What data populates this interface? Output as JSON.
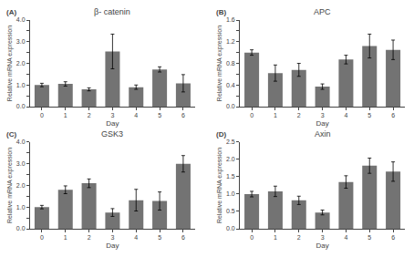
{
  "chart_data": [
    {
      "type": "bar",
      "title": "β- catenin",
      "annotations": [
        "(A)"
      ],
      "categories": [
        "0",
        "1",
        "2",
        "3",
        "4",
        "5",
        "6"
      ],
      "values": [
        1.0,
        1.05,
        0.8,
        2.55,
        0.9,
        1.72,
        1.08
      ],
      "errors": [
        0.08,
        0.1,
        0.07,
        0.8,
        0.1,
        0.12,
        0.4
      ],
      "color": "#737373",
      "xlabel": "Day",
      "ylabel": "Relative mRNA expression",
      "ylim": [
        0.0,
        4.0
      ],
      "yticks": [
        {
          "value": 0.0,
          "label": "0.0"
        },
        {
          "value": 0.5,
          "label": ""
        },
        {
          "value": 1.0,
          "label": "1.0"
        },
        {
          "value": 1.5,
          "label": ""
        },
        {
          "value": 2.0,
          "label": "2.0"
        },
        {
          "value": 2.5,
          "label": ""
        },
        {
          "value": 3.0,
          "label": "3.0"
        },
        {
          "value": 3.5,
          "label": ""
        },
        {
          "value": 4.0,
          "label": "4.0"
        }
      ],
      "grid": false
    },
    {
      "type": "bar",
      "title": "APC",
      "annotations": [
        "(B)"
      ],
      "categories": [
        "0",
        "1",
        "2",
        "3",
        "4",
        "5",
        "6"
      ],
      "values": [
        1.0,
        0.62,
        0.68,
        0.37,
        0.87,
        1.12,
        1.05
      ],
      "errors": [
        0.05,
        0.15,
        0.12,
        0.05,
        0.08,
        0.22,
        0.18
      ],
      "color": "#737373",
      "xlabel": "Day",
      "ylabel": "Relative mRNA expression",
      "ylim": [
        0.0,
        1.6
      ],
      "yticks": [
        {
          "value": 0.0,
          "label": "0.0"
        },
        {
          "value": 0.2,
          "label": ""
        },
        {
          "value": 0.4,
          "label": "0.4"
        },
        {
          "value": 0.6,
          "label": ""
        },
        {
          "value": 0.8,
          "label": "0.8"
        },
        {
          "value": 1.0,
          "label": ""
        },
        {
          "value": 1.2,
          "label": "1.2"
        },
        {
          "value": 1.4,
          "label": ""
        },
        {
          "value": 1.6,
          "label": "1.6"
        }
      ],
      "grid": false
    },
    {
      "type": "bar",
      "title": "GSK3",
      "annotations": [
        "(C)"
      ],
      "categories": [
        "0",
        "1",
        "2",
        "3",
        "4",
        "5",
        "6"
      ],
      "values": [
        1.0,
        1.8,
        2.1,
        0.75,
        1.32,
        1.28,
        3.0
      ],
      "errors": [
        0.08,
        0.18,
        0.2,
        0.18,
        0.5,
        0.42,
        0.38
      ],
      "color": "#737373",
      "xlabel": "Day",
      "ylabel": "Relative mRNA expression",
      "ylim": [
        0.0,
        4.0
      ],
      "yticks": [
        {
          "value": 0.0,
          "label": "0.0"
        },
        {
          "value": 0.5,
          "label": ""
        },
        {
          "value": 1.0,
          "label": "1.0"
        },
        {
          "value": 1.5,
          "label": ""
        },
        {
          "value": 2.0,
          "label": "2.0"
        },
        {
          "value": 2.5,
          "label": ""
        },
        {
          "value": 3.0,
          "label": "3.0"
        },
        {
          "value": 3.5,
          "label": ""
        },
        {
          "value": 4.0,
          "label": "4.0"
        }
      ],
      "grid": false
    },
    {
      "type": "bar",
      "title": "Axin",
      "annotations": [
        "(D)"
      ],
      "categories": [
        "0",
        "1",
        "2",
        "3",
        "4",
        "5",
        "6"
      ],
      "values": [
        1.0,
        1.08,
        0.82,
        0.47,
        1.35,
        1.82,
        1.65
      ],
      "errors": [
        0.08,
        0.15,
        0.12,
        0.07,
        0.18,
        0.22,
        0.28
      ],
      "color": "#737373",
      "xlabel": "Day",
      "ylabel": "Relative mRNA expression",
      "ylim": [
        0.0,
        2.5
      ],
      "yticks": [
        {
          "value": 0.0,
          "label": "0.0"
        },
        {
          "value": 0.5,
          "label": "0.5"
        },
        {
          "value": 1.0,
          "label": "1.0"
        },
        {
          "value": 1.5,
          "label": "1.5"
        },
        {
          "value": 2.0,
          "label": "2.0"
        },
        {
          "value": 2.5,
          "label": "2.5"
        }
      ],
      "grid": false
    }
  ]
}
